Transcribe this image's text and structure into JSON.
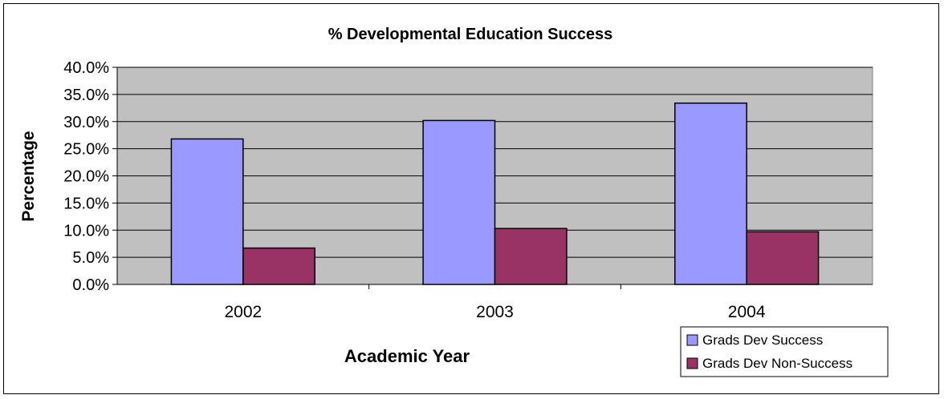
{
  "chart_data": {
    "type": "bar",
    "title": "% Developmental Education Success",
    "xlabel": "Academic Year",
    "ylabel": "Percentage",
    "categories": [
      "2002",
      "2003",
      "2004"
    ],
    "series": [
      {
        "name": "Grads Dev Success",
        "values": [
          26.8,
          30.2,
          33.4
        ],
        "color": "#9999FF"
      },
      {
        "name": "Grads Dev Non-Success",
        "values": [
          6.7,
          10.3,
          9.7
        ],
        "color": "#993366"
      }
    ],
    "ylim": [
      0,
      40
    ],
    "yticks": [
      "0.0%",
      "5.0%",
      "10.0%",
      "15.0%",
      "20.0%",
      "25.0%",
      "30.0%",
      "35.0%",
      "40.0%"
    ],
    "plot_background": "#C0C0C0",
    "grid": true,
    "legend_position": "bottom-right"
  }
}
